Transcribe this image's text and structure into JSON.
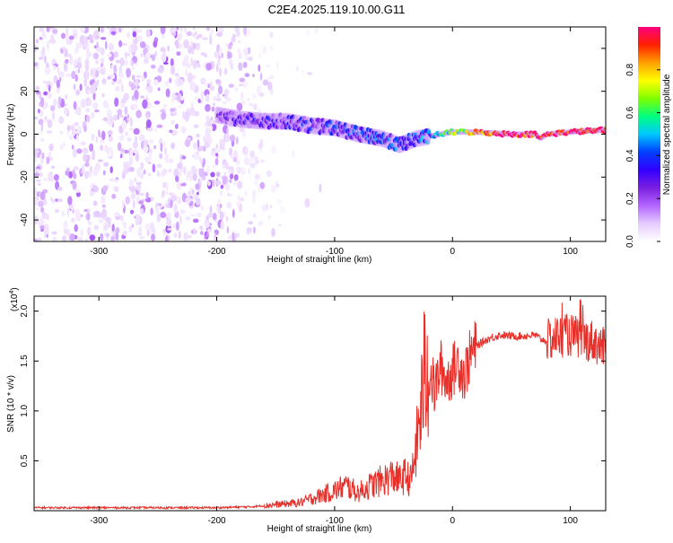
{
  "title": "C2E4.2025.119.10.00.G11",
  "colors": {
    "snr_line": "#e8302a",
    "colormap": [
      "#ffffff",
      "#e6ccff",
      "#b266ff",
      "#7a1fe0",
      "#3300ff",
      "#0040ff",
      "#00c8ff",
      "#00ff80",
      "#80ff00",
      "#ffff00",
      "#ffa000",
      "#ff2000",
      "#ff0080"
    ]
  },
  "chart_data": [
    {
      "type": "heatmap",
      "xlabel": "Height of straight line (km)",
      "ylabel": "Frequency (Hz)",
      "xlim": [
        -355,
        130
      ],
      "ylim": [
        -50,
        50
      ],
      "x_ticks": [
        -300,
        -200,
        -100,
        0,
        100
      ],
      "y_ticks": [
        -40,
        -20,
        0,
        20,
        40
      ],
      "noise_region_x": [
        -355,
        -150
      ],
      "signal_track": {
        "x": [
          -200,
          -180,
          -160,
          -140,
          -120,
          -100,
          -80,
          -60,
          -45,
          -30,
          -10,
          0,
          20,
          50,
          70,
          75,
          80,
          100,
          130
        ],
        "y": [
          9,
          7,
          6,
          6,
          4,
          3,
          0,
          -2,
          -5,
          -2,
          0,
          1,
          1,
          0,
          0,
          -2,
          0,
          1,
          2
        ]
      },
      "colorbar": {
        "label": "Normalized spectral amplitude",
        "range": [
          0,
          1
        ],
        "ticks": [
          "0.0",
          "0.2",
          "0.4",
          "0.6",
          "0.8"
        ]
      }
    },
    {
      "type": "line",
      "xlabel": "Height of straight line (km)",
      "ylabel": "SNR (10 * v/v)",
      "scale_label": "(x10",
      "scale_exp": "4",
      "scale_close": ")",
      "xlim": [
        -355,
        130
      ],
      "ylim": [
        0,
        2.15
      ],
      "x_ticks": [
        -300,
        -200,
        -100,
        0,
        100
      ],
      "y_ticks": [
        "0.5",
        "1.0",
        "1.5",
        "2.0"
      ],
      "series": [
        {
          "x": [
            -355,
            -300,
            -250,
            -200,
            -170,
            -160,
            -140,
            -130,
            -120,
            -100,
            -90,
            -80,
            -70,
            -60,
            -50,
            -45,
            -40,
            -35,
            -30,
            -27,
            -24,
            -20,
            -15,
            -10,
            -5,
            0,
            5,
            10,
            15,
            20,
            30,
            40,
            50,
            60,
            70,
            75,
            80,
            90,
            100,
            110,
            120,
            130
          ],
          "y": [
            0.03,
            0.03,
            0.03,
            0.03,
            0.04,
            0.05,
            0.07,
            0.08,
            0.12,
            0.2,
            0.25,
            0.18,
            0.25,
            0.3,
            0.35,
            0.3,
            0.35,
            0.3,
            0.7,
            1.0,
            1.35,
            1.4,
            1.2,
            1.45,
            1.3,
            1.4,
            1.5,
            1.35,
            1.55,
            1.65,
            1.72,
            1.76,
            1.75,
            1.75,
            1.76,
            1.72,
            1.7,
            1.75,
            1.76,
            1.72,
            1.7,
            1.6
          ]
        }
      ]
    }
  ]
}
